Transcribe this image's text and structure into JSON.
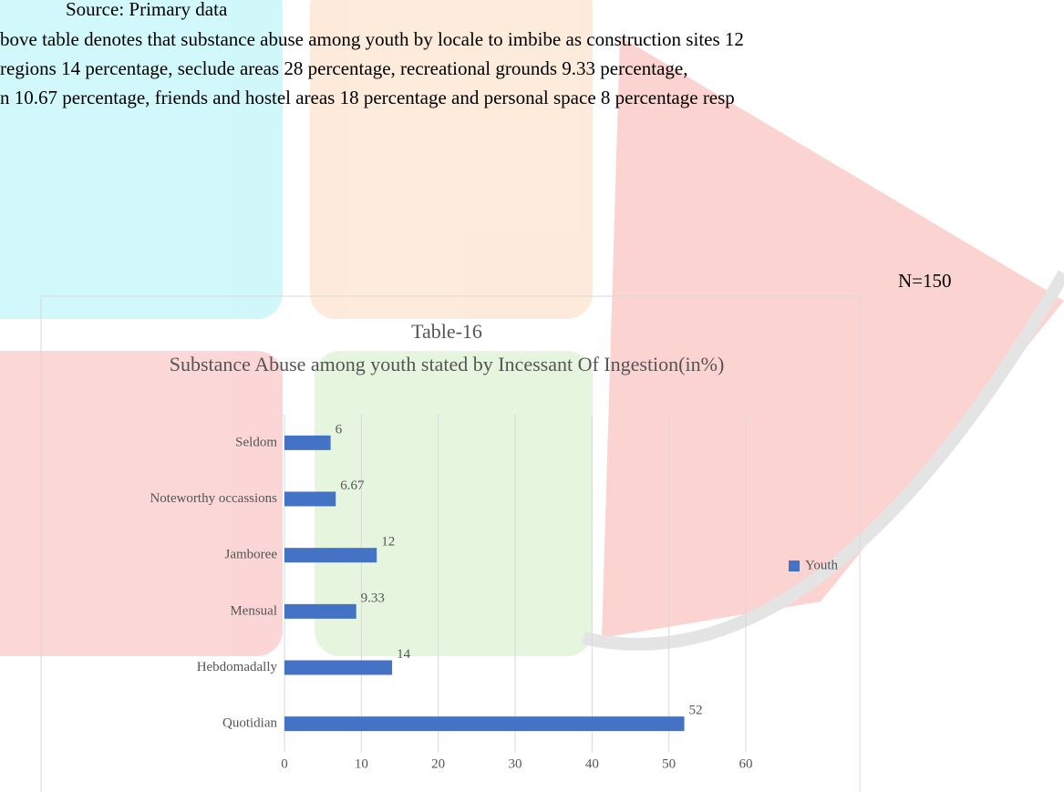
{
  "document": {
    "source": "Source: Primary data",
    "paragraph_lines": [
      "bove table denotes that substance abuse among youth by locale to imbibe as construction sites 12",
      " regions 14 percentage, seclude areas 28 percentage, recreational grounds 9.33 percentage,",
      "n 10.67 percentage, friends and hostel areas 18 percentage and personal space 8 percentage resp"
    ],
    "sample_size": "N=150"
  },
  "chart_data": {
    "type": "bar",
    "orientation": "horizontal",
    "title": "Table-16",
    "subtitle": "Substance Abuse among youth stated by Incessant Of Ingestion(in%)",
    "categories": [
      "Quotidian",
      "Hebdomadally",
      "Mensual",
      "Jamboree",
      "Noteworthy occassions",
      "Seldom"
    ],
    "series": [
      {
        "name": "Youth",
        "color": "#4472c4",
        "values": [
          52,
          14,
          9.33,
          12,
          6.67,
          6
        ]
      }
    ],
    "xlim": [
      0,
      60
    ],
    "xticks": [
      0,
      10,
      20,
      30,
      40,
      50,
      60
    ],
    "grid": true
  }
}
